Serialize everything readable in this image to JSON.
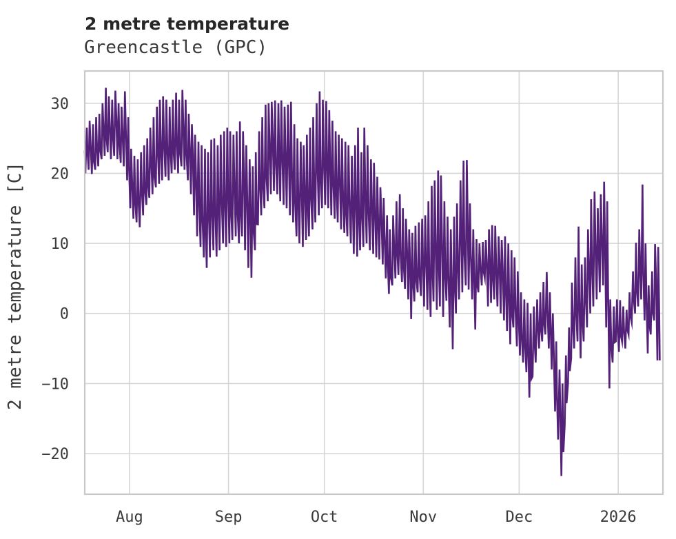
{
  "chart_data": {
    "type": "line",
    "title": "2 metre temperature",
    "subtitle": "Greencastle (GPC)",
    "ylabel": "2 metre temperature [C]",
    "series_name": "2 metre temperature",
    "legend": false,
    "grid": true,
    "colors": {
      "line": "#542178",
      "grid": "#d6d6d6",
      "border": "#c9c9c9",
      "tick_text": "#3a3a3a",
      "title_text": "#262626",
      "background": "#ffffff"
    },
    "x_axis": {
      "tick_labels": [
        "Aug",
        "Sep",
        "Oct",
        "Nov",
        "Dec",
        "2026"
      ],
      "tick_days": [
        14,
        45,
        75,
        106,
        136,
        167
      ],
      "total_days": 181
    },
    "y_axis": {
      "tick_labels": [
        "30",
        "20",
        "10",
        "0",
        "−10",
        "−20"
      ],
      "tick_values": [
        30,
        20,
        10,
        0,
        -10,
        -20
      ],
      "ylim": [
        -25.8,
        34.6
      ]
    },
    "daily_minmax": [
      [
        20,
        26.5
      ],
      [
        20.5,
        27.5
      ],
      [
        19.9,
        27
      ],
      [
        20.5,
        28
      ],
      [
        21,
        28.5
      ],
      [
        22,
        30
      ],
      [
        22.5,
        32.2
      ],
      [
        23,
        31
      ],
      [
        22,
        30.5
      ],
      [
        22.5,
        31.8
      ],
      [
        22,
        30
      ],
      [
        21.5,
        29.5
      ],
      [
        21,
        31.7
      ],
      [
        19,
        28
      ],
      [
        15,
        23.5
      ],
      [
        13.5,
        22.5
      ],
      [
        13,
        22
      ],
      [
        12.3,
        23
      ],
      [
        14,
        24
      ],
      [
        15.5,
        25
      ],
      [
        16.5,
        26.5
      ],
      [
        17,
        28
      ],
      [
        18,
        29.5
      ],
      [
        18.5,
        30.5
      ],
      [
        19,
        31
      ],
      [
        19.5,
        30.5
      ],
      [
        19,
        29.5
      ],
      [
        20,
        30.5
      ],
      [
        20.5,
        31.5
      ],
      [
        20,
        30.5
      ],
      [
        21,
        31.9
      ],
      [
        20.5,
        30.5
      ],
      [
        19,
        28.5
      ],
      [
        17,
        27
      ],
      [
        14,
        25.5
      ],
      [
        11,
        24.5
      ],
      [
        9.5,
        24
      ],
      [
        8,
        23.5
      ],
      [
        6.5,
        23
      ],
      [
        8,
        24.8
      ],
      [
        9,
        25
      ],
      [
        8.1,
        24
      ],
      [
        9,
        25.5
      ],
      [
        10,
        26
      ],
      [
        9.5,
        26.5
      ],
      [
        10,
        26
      ],
      [
        10.5,
        25.5
      ],
      [
        11,
        26
      ],
      [
        10,
        27.4
      ],
      [
        11,
        26
      ],
      [
        9,
        24
      ],
      [
        6.5,
        22
      ],
      [
        5.1,
        21
      ],
      [
        9,
        23
      ],
      [
        12.7,
        26
      ],
      [
        14,
        28
      ],
      [
        15,
        29.8
      ],
      [
        16,
        30
      ],
      [
        17,
        30.2
      ],
      [
        17.5,
        30.4
      ],
      [
        17,
        30
      ],
      [
        16,
        30.4
      ],
      [
        15.5,
        29.5
      ],
      [
        15,
        29.8
      ],
      [
        14,
        30.2
      ],
      [
        13,
        27
      ],
      [
        11,
        25
      ],
      [
        10,
        24.5
      ],
      [
        9.5,
        24
      ],
      [
        10.5,
        25.5
      ],
      [
        11,
        26.5
      ],
      [
        12,
        28
      ],
      [
        13,
        30
      ],
      [
        14,
        31.7
      ],
      [
        15,
        30.5
      ],
      [
        15.5,
        30.3
      ],
      [
        15,
        29
      ],
      [
        14,
        27.5
      ],
      [
        13.5,
        26
      ],
      [
        13,
        25.5
      ],
      [
        12,
        25
      ],
      [
        11.5,
        24.5
      ],
      [
        11,
        24
      ],
      [
        10,
        22.5
      ],
      [
        8.5,
        24
      ],
      [
        8.1,
        26.5
      ],
      [
        9,
        23
      ],
      [
        9.5,
        26.5
      ],
      [
        10,
        24
      ],
      [
        9,
        22
      ],
      [
        8.5,
        21.5
      ],
      [
        8,
        19.5
      ],
      [
        7.7,
        18
      ],
      [
        7,
        16.5
      ],
      [
        5,
        14
      ],
      [
        2.8,
        12
      ],
      [
        4,
        14
      ],
      [
        5,
        16
      ],
      [
        5.5,
        17
      ],
      [
        4.5,
        15
      ],
      [
        3.5,
        13.5
      ],
      [
        2,
        12
      ],
      [
        -0.8,
        11.5
      ],
      [
        1.7,
        12.5
      ],
      [
        3,
        13
      ],
      [
        2.5,
        13.5
      ],
      [
        1,
        14
      ],
      [
        0.5,
        16
      ],
      [
        -0.5,
        18.2
      ],
      [
        1.7,
        19
      ],
      [
        0.5,
        20.4
      ],
      [
        1,
        19.7
      ],
      [
        -0.5,
        16
      ],
      [
        1.8,
        13.8
      ],
      [
        -2,
        12
      ],
      [
        -5.1,
        13.8
      ],
      [
        0,
        15.7
      ],
      [
        2,
        19
      ],
      [
        3,
        21.8
      ],
      [
        4,
        21.9
      ],
      [
        3.4,
        15.7
      ],
      [
        2,
        12
      ],
      [
        -2.3,
        10.6
      ],
      [
        3,
        10
      ],
      [
        4,
        10.2
      ],
      [
        5.1,
        10.5
      ],
      [
        1,
        12
      ],
      [
        1.5,
        12.6
      ],
      [
        2,
        12.5
      ],
      [
        1,
        11
      ],
      [
        0,
        10.5
      ],
      [
        -1,
        11
      ],
      [
        -2.5,
        10
      ],
      [
        -4.4,
        9
      ],
      [
        -2,
        8
      ],
      [
        -4.7,
        6
      ],
      [
        -6,
        3
      ],
      [
        -7,
        2
      ],
      [
        -8.4,
        1.5
      ],
      [
        -12,
        0
      ],
      [
        -9,
        1
      ],
      [
        -7,
        2
      ],
      [
        -5,
        3
      ],
      [
        -4,
        4.5
      ],
      [
        -3,
        5.9
      ],
      [
        -5,
        3
      ],
      [
        -8,
        0
      ],
      [
        -14,
        -4
      ],
      [
        -18,
        -8
      ],
      [
        -23.2,
        -10
      ],
      [
        -16,
        -6
      ],
      [
        -10,
        -2
      ],
      [
        -6.4,
        4.4
      ],
      [
        -5,
        8
      ],
      [
        -4,
        12.4
      ],
      [
        -6.4,
        7
      ],
      [
        -4,
        8
      ],
      [
        -2,
        12
      ],
      [
        0,
        16.3
      ],
      [
        1,
        17.4
      ],
      [
        2,
        15
      ],
      [
        3,
        17
      ],
      [
        4,
        18.8
      ],
      [
        -2,
        16
      ],
      [
        -10.7,
        2
      ],
      [
        -7,
        1
      ],
      [
        -4,
        2
      ],
      [
        -5.5,
        1.9
      ],
      [
        -4,
        1
      ],
      [
        -5,
        0.5
      ],
      [
        -3,
        3
      ],
      [
        -1.3,
        6
      ],
      [
        0,
        10.1
      ],
      [
        1,
        12
      ],
      [
        2,
        18.4
      ],
      [
        -1,
        10
      ],
      [
        -5.7,
        4
      ],
      [
        -3,
        6
      ],
      [
        -1,
        9.9
      ],
      [
        -6.7,
        9.5
      ]
    ]
  }
}
